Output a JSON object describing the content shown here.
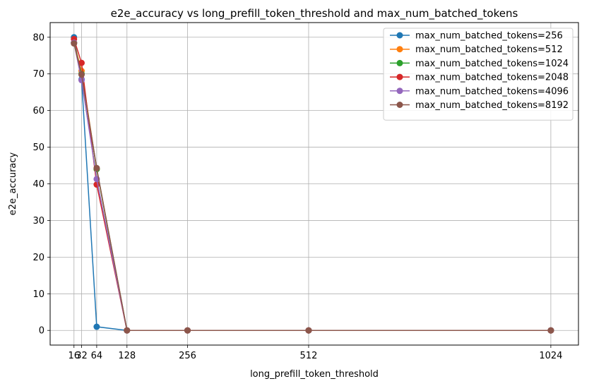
{
  "chart_data": {
    "type": "line",
    "title": "e2e_accuracy vs long_prefill_token_threshold and max_num_batched_tokens",
    "xlabel": "long_prefill_token_threshold",
    "ylabel": "e2e_accuracy",
    "xlim": [
      -34.4,
      1082.4
    ],
    "ylim": [
      -4,
      84
    ],
    "x": [
      16,
      32,
      64,
      128,
      256,
      512,
      1024
    ],
    "xticks": [
      16,
      32,
      64,
      128,
      256,
      512,
      1024
    ],
    "xtick_labels": [
      "16",
      "32",
      "64",
      "128",
      "256",
      "512",
      "1024"
    ],
    "yticks": [
      0,
      10,
      20,
      30,
      40,
      50,
      60,
      70,
      80
    ],
    "grid": true,
    "legend_position": "top-right",
    "series": [
      {
        "name": "max_num_batched_tokens=256",
        "color": "#1f77b4",
        "values": [
          80.0,
          68.5,
          1.0,
          0.0,
          0.0,
          0.0,
          0.0
        ]
      },
      {
        "name": "max_num_batched_tokens=512",
        "color": "#ff7f0e",
        "values": [
          78.5,
          70.8,
          44.0,
          0.0,
          0.0,
          0.0,
          0.0
        ]
      },
      {
        "name": "max_num_batched_tokens=1024",
        "color": "#2ca02c",
        "values": [
          78.5,
          70.0,
          44.0,
          0.0,
          0.0,
          0.0,
          0.0
        ]
      },
      {
        "name": "max_num_batched_tokens=2048",
        "color": "#d62728",
        "values": [
          79.5,
          73.0,
          39.8,
          0.0,
          0.0,
          0.0,
          0.0
        ]
      },
      {
        "name": "max_num_batched_tokens=4096",
        "color": "#9467bd",
        "values": [
          78.5,
          68.3,
          41.3,
          0.0,
          0.0,
          0.0,
          0.0
        ]
      },
      {
        "name": "max_num_batched_tokens=8192",
        "color": "#8c564b",
        "values": [
          78.3,
          69.8,
          44.3,
          0.0,
          0.0,
          0.0,
          0.0
        ]
      }
    ]
  }
}
